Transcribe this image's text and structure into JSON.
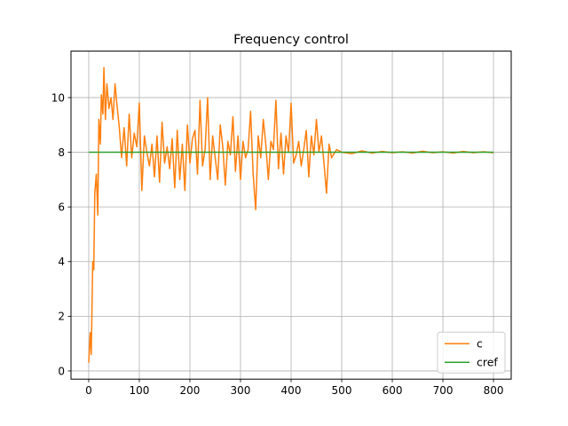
{
  "chart_data": {
    "type": "line",
    "title": "Frequency control",
    "xlabel": "",
    "ylabel": "",
    "xlim": [
      -35,
      835
    ],
    "ylim": [
      -0.3,
      11.7
    ],
    "xticks": [
      0,
      100,
      200,
      300,
      400,
      500,
      600,
      700,
      800
    ],
    "yticks": [
      0,
      2,
      4,
      6,
      8,
      10
    ],
    "grid": true,
    "legend_position": "bottom-right",
    "series": [
      {
        "name": "c",
        "color": "#ff7f0e",
        "x": [
          0,
          3,
          5,
          8,
          10,
          12,
          15,
          18,
          20,
          23,
          25,
          28,
          30,
          33,
          36,
          40,
          44,
          48,
          52,
          56,
          60,
          65,
          70,
          75,
          80,
          85,
          90,
          95,
          100,
          105,
          110,
          115,
          120,
          125,
          130,
          135,
          140,
          145,
          150,
          155,
          160,
          165,
          170,
          175,
          180,
          185,
          190,
          195,
          200,
          205,
          210,
          215,
          220,
          225,
          230,
          235,
          240,
          245,
          250,
          255,
          260,
          265,
          270,
          275,
          280,
          285,
          290,
          295,
          300,
          305,
          310,
          315,
          320,
          325,
          330,
          335,
          340,
          345,
          350,
          355,
          360,
          365,
          370,
          375,
          380,
          385,
          390,
          395,
          400,
          405,
          410,
          415,
          420,
          425,
          430,
          435,
          440,
          445,
          450,
          455,
          460,
          465,
          470,
          475,
          480,
          490,
          500,
          520,
          540,
          560,
          580,
          600,
          620,
          640,
          660,
          680,
          700,
          720,
          740,
          760,
          780,
          800
        ],
        "y": [
          0.3,
          1.4,
          0.6,
          4.0,
          3.7,
          6.5,
          7.2,
          5.7,
          9.2,
          8.3,
          10.1,
          9.4,
          11.1,
          9.2,
          10.5,
          9.6,
          10.0,
          9.2,
          10.5,
          9.7,
          9.0,
          7.8,
          8.9,
          7.5,
          9.4,
          7.8,
          8.7,
          8.2,
          9.8,
          6.6,
          8.6,
          8.0,
          7.5,
          8.3,
          7.1,
          8.6,
          6.9,
          9.1,
          7.6,
          8.2,
          7.4,
          8.5,
          6.7,
          8.8,
          7.0,
          8.3,
          6.6,
          9.0,
          7.6,
          8.5,
          8.8,
          7.2,
          9.9,
          7.5,
          8.1,
          10.0,
          7.0,
          8.6,
          7.8,
          7.0,
          9.0,
          8.2,
          6.8,
          8.4,
          7.9,
          9.3,
          7.3,
          8.6,
          7.0,
          8.4,
          7.8,
          8.1,
          9.5,
          7.2,
          5.9,
          8.6,
          7.8,
          9.2,
          8.3,
          7.0,
          8.4,
          8.1,
          9.9,
          7.4,
          8.7,
          7.2,
          8.6,
          8.0,
          9.8,
          7.6,
          7.9,
          8.4,
          7.5,
          8.1,
          8.8,
          7.1,
          8.6,
          7.9,
          9.2,
          8.0,
          8.6,
          7.6,
          6.5,
          8.3,
          7.8,
          8.1,
          8.0,
          7.95,
          8.05,
          7.97,
          8.03,
          7.98,
          8.02,
          7.97,
          8.04,
          7.98,
          8.02,
          7.97,
          8.03,
          7.98,
          8.02,
          7.98
        ]
      },
      {
        "name": "cref",
        "color": "#2ca02c",
        "x": [
          0,
          100,
          200,
          300,
          400,
          500,
          600,
          700,
          800
        ],
        "y": [
          8,
          8,
          8,
          8,
          8,
          8,
          8,
          8,
          8
        ]
      }
    ]
  }
}
